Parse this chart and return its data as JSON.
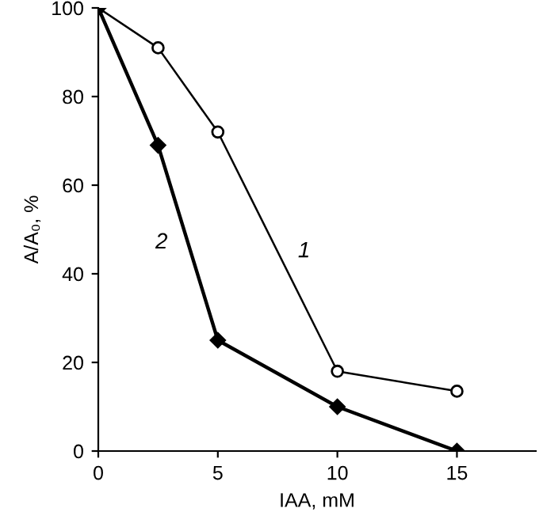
{
  "chart_data": {
    "type": "line",
    "xlabel": "IAA, mM",
    "ylabel": "A/A₀, %",
    "x": [
      0,
      2.5,
      5,
      10,
      15
    ],
    "series": [
      {
        "name": "1",
        "color": "#000000",
        "values": [
          100,
          91,
          72,
          18,
          13.5
        ],
        "marker": "circle"
      },
      {
        "name": "2",
        "color": "#000000",
        "values": [
          100,
          69,
          25,
          10,
          0
        ],
        "marker": "diamond"
      }
    ],
    "xlim": [
      0,
      18.3
    ],
    "ylim": [
      0,
      100
    ],
    "xticks": [
      0,
      5,
      10,
      15
    ],
    "yticks": [
      0,
      20,
      40,
      60,
      80,
      100
    ],
    "grid": false,
    "legend": false,
    "line_style": "solid"
  }
}
